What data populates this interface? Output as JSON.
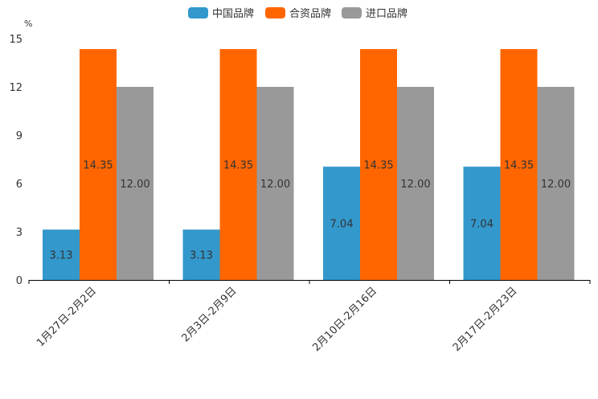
{
  "chart_data": {
    "type": "bar",
    "title": "",
    "xlabel": "",
    "ylabel": "%",
    "ylim": [
      0,
      15
    ],
    "yticks": [
      "0",
      "3",
      "6",
      "9",
      "12",
      "15"
    ],
    "categories": [
      "1月27日-2月2日",
      "2月3日-2月9日",
      "2月10日-2月16日",
      "2月17日-2月23日"
    ],
    "series": [
      {
        "name": "中国品牌",
        "color": "#3398cc",
        "values": [
          3.13,
          3.13,
          7.04,
          7.04
        ],
        "labels": [
          "3.13",
          "3.13",
          "7.04",
          "7.04"
        ]
      },
      {
        "name": "合资品牌",
        "color": "#ff6600",
        "values": [
          14.35,
          14.35,
          14.35,
          14.35
        ],
        "labels": [
          "14.35",
          "14.35",
          "14.35",
          "14.35"
        ]
      },
      {
        "name": "进口品牌",
        "color": "#999999",
        "values": [
          12.0,
          12.0,
          12.0,
          12.0
        ],
        "labels": [
          "12.00",
          "12.00",
          "12.00",
          "12.00"
        ]
      }
    ],
    "legend": "top-center",
    "grid": false
  }
}
